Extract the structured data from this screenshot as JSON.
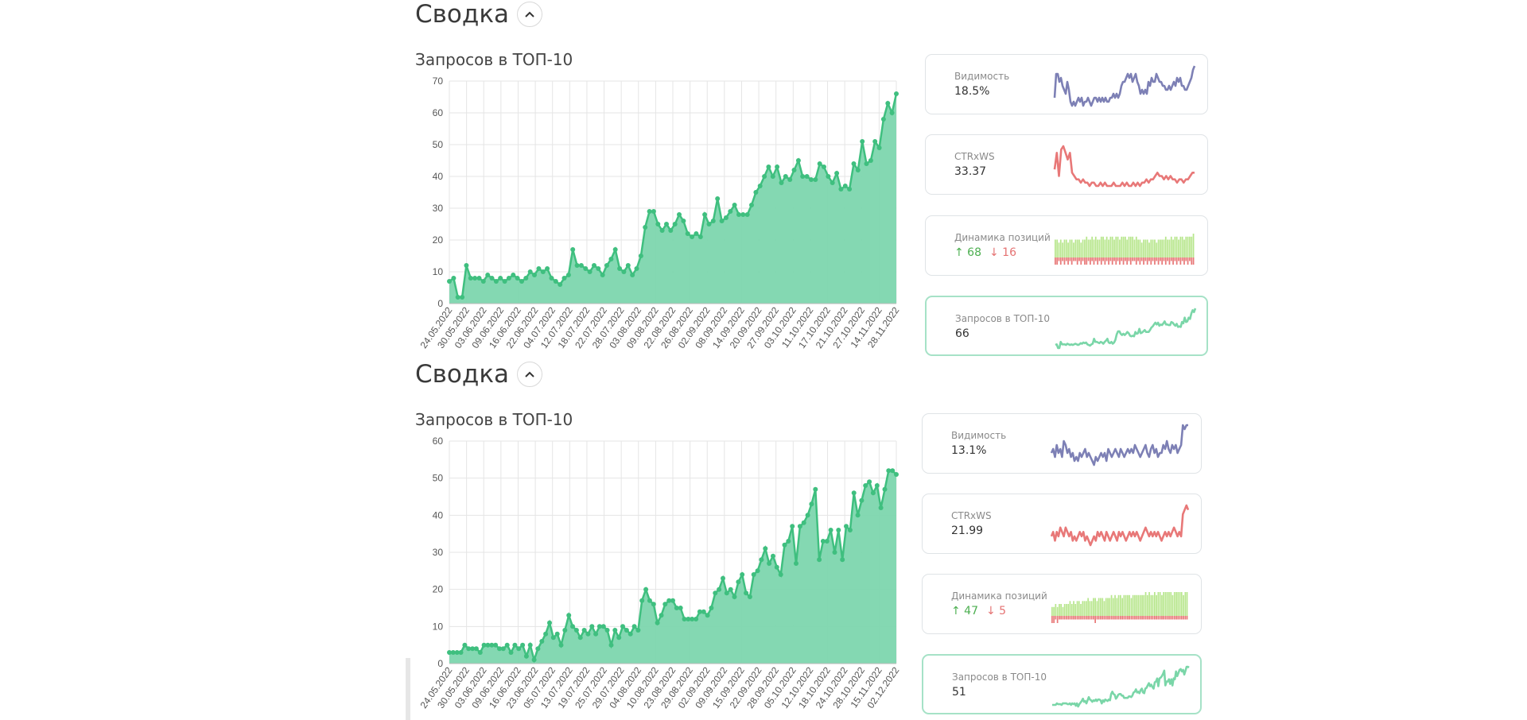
{
  "colors": {
    "area_fill": "#7dd6ae",
    "area_line": "#3fbf7f",
    "grid": "#e5e5e5",
    "visibility_line": "#7d80b5",
    "ctr_line": "#e87878",
    "pos_up": "#b7e68c",
    "pos_down": "#e87878",
    "top10_line": "#7ad6a8"
  },
  "sections": [
    {
      "title": "Сводка",
      "collapse_icon": "chevron-up-icon",
      "chart_data": {
        "type": "area",
        "title": "Запросов в ТОП-10",
        "xlabel": "",
        "ylabel": "",
        "ylim": [
          0,
          70
        ],
        "yticks": [
          0,
          10,
          20,
          30,
          40,
          50,
          60,
          70
        ],
        "x_tick_labels": [
          "24.05.2022",
          "30.05.2022",
          "03.06.2022",
          "09.06.2022",
          "16.06.2022",
          "22.06.2022",
          "04.07.2022",
          "12.07.2022",
          "18.07.2022",
          "22.07.2022",
          "28.07.2022",
          "03.08.2022",
          "09.08.2022",
          "22.08.2022",
          "26.08.2022",
          "02.09.2022",
          "08.09.2022",
          "14.09.2022",
          "20.09.2022",
          "27.09.2022",
          "03.10.2022",
          "11.10.2022",
          "17.10.2022",
          "21.10.2022",
          "27.10.2022",
          "14.11.2022",
          "28.11.2022"
        ],
        "values": [
          7,
          8,
          2,
          2,
          12,
          8,
          8,
          8,
          7,
          9,
          8,
          7,
          8,
          7,
          8,
          9,
          8,
          7,
          8,
          10,
          9,
          11,
          10,
          11,
          8,
          7,
          6,
          8,
          9,
          17,
          12,
          12,
          11,
          10,
          12,
          11,
          9,
          12,
          14,
          17,
          11,
          10,
          12,
          9,
          11,
          15,
          24,
          29,
          29,
          25,
          23,
          25,
          23,
          25,
          28,
          26,
          22,
          21,
          22,
          21,
          28,
          25,
          26,
          33,
          26,
          27,
          29,
          31,
          28,
          28,
          28,
          31,
          35,
          37,
          40,
          43,
          40,
          43,
          38,
          40,
          39,
          42,
          45,
          40,
          40,
          39,
          39,
          44,
          43,
          40,
          38,
          41,
          36,
          37,
          36,
          44,
          42,
          51,
          44,
          45,
          51,
          49,
          58,
          63,
          60,
          66
        ]
      },
      "cards": [
        {
          "label": "Видимость",
          "value": "18.5%",
          "kind": "line",
          "color_key": "visibility_line",
          "values": [
            3,
            9,
            9,
            7,
            8,
            6,
            5,
            4,
            7,
            5,
            2,
            1,
            2,
            1,
            2,
            3,
            2,
            3,
            1,
            2,
            2,
            3,
            2,
            1,
            2,
            3,
            3,
            2,
            3,
            2,
            3,
            2,
            3,
            2,
            2,
            3,
            3,
            4,
            3,
            4,
            3,
            4,
            6,
            7,
            7,
            8,
            9,
            8,
            9,
            7,
            8,
            9,
            7,
            6,
            4,
            5,
            4,
            5,
            4,
            7,
            6,
            8,
            7,
            7,
            9,
            8,
            7,
            7,
            6,
            6,
            5,
            5,
            6,
            5,
            6,
            7,
            6,
            8,
            7,
            8,
            6,
            6,
            5,
            5,
            6,
            7,
            8,
            10,
            11
          ]
        },
        {
          "label": "CTRxWS",
          "value": "33.37",
          "kind": "line",
          "color_key": "ctr_line",
          "values": [
            5,
            10,
            3,
            11,
            12,
            10,
            8,
            10,
            4,
            3,
            2,
            2,
            1,
            2,
            1,
            1,
            0,
            1,
            1,
            0,
            0,
            1,
            0,
            1,
            0,
            0,
            0,
            1,
            0,
            0,
            0,
            1,
            0,
            1,
            0,
            0,
            1,
            0,
            1,
            0,
            1,
            1,
            2,
            1,
            2,
            2,
            3,
            4,
            3,
            3,
            2,
            3,
            2,
            3,
            2,
            2,
            1,
            2,
            2,
            1,
            2,
            2,
            3,
            4,
            4
          ]
        },
        {
          "label": "Динамика позиций",
          "value_up": "↑ 68",
          "value_down": "↓ 16",
          "kind": "bars",
          "up": [
            6,
            6,
            5,
            6,
            5,
            6,
            6,
            5,
            6,
            6,
            5,
            6,
            6,
            6,
            5,
            6,
            6,
            7,
            6,
            6,
            7,
            6,
            7,
            6,
            6,
            7,
            7,
            6,
            7,
            6,
            7,
            7,
            6,
            7,
            7,
            6,
            7,
            7,
            7,
            6,
            7,
            7,
            7,
            6,
            7,
            6,
            6,
            5,
            6,
            6,
            6,
            5,
            6,
            6,
            6,
            5,
            6,
            6,
            6,
            6,
            7,
            6,
            6,
            7,
            6,
            7,
            7,
            6,
            7,
            7,
            6,
            7,
            7,
            7,
            7,
            8
          ],
          "down": [
            2,
            2,
            1,
            2,
            1,
            2,
            1,
            2,
            1,
            2,
            1,
            1,
            2,
            1,
            2,
            1,
            2,
            2,
            1,
            2,
            1,
            2,
            1,
            2,
            1,
            2,
            1,
            2,
            1,
            2,
            1,
            2,
            1,
            2,
            1,
            2,
            1,
            2,
            1,
            2,
            1,
            2,
            1,
            1,
            2,
            1,
            2,
            1,
            2,
            1,
            2,
            1,
            2,
            1,
            2,
            1,
            2,
            1,
            2,
            1,
            2,
            1,
            2,
            1,
            2,
            1,
            2,
            1,
            2,
            1,
            2,
            1,
            2,
            1,
            2,
            2
          ]
        },
        {
          "label": "Запросов в ТОП-10",
          "value": "66",
          "kind": "line",
          "color_key": "top10_line",
          "active": true,
          "values": [
            7,
            8,
            2,
            2,
            12,
            8,
            8,
            8,
            7,
            9,
            8,
            7,
            8,
            7,
            8,
            9,
            8,
            7,
            8,
            10,
            9,
            11,
            10,
            11,
            8,
            7,
            6,
            8,
            9,
            17,
            12,
            12,
            11,
            10,
            12,
            11,
            9,
            12,
            14,
            17,
            11,
            10,
            12,
            9,
            11,
            15,
            24,
            29,
            29,
            25,
            23,
            25,
            23,
            25,
            28,
            26,
            22,
            21,
            22,
            21,
            28,
            25,
            26,
            33,
            26,
            27,
            29,
            31,
            28,
            28,
            28,
            31,
            35,
            37,
            40,
            43,
            40,
            43,
            38,
            40,
            39,
            42,
            45,
            40,
            40,
            39,
            39,
            44,
            43,
            40,
            38,
            41,
            36,
            37,
            36,
            44,
            42,
            51,
            44,
            45,
            51,
            49,
            58,
            63,
            60,
            66
          ]
        }
      ]
    },
    {
      "title": "Сводка",
      "collapse_icon": "chevron-up-icon",
      "chart_data": {
        "type": "area",
        "title": "Запросов в ТОП-10",
        "xlabel": "",
        "ylabel": "",
        "ylim": [
          0,
          60
        ],
        "yticks": [
          0,
          10,
          20,
          30,
          40,
          50,
          60
        ],
        "x_tick_labels": [
          "24.05.2022",
          "30.05.2022",
          "03.06.2022",
          "09.06.2022",
          "16.06.2022",
          "23.06.2022",
          "05.07.2022",
          "13.07.2022",
          "19.07.2022",
          "25.07.2022",
          "29.07.2022",
          "04.08.2022",
          "10.08.2022",
          "23.08.2022",
          "29.08.2022",
          "02.09.2022",
          "09.09.2022",
          "15.09.2022",
          "22.09.2022",
          "28.09.2022",
          "05.10.2022",
          "12.10.2022",
          "18.10.2022",
          "24.10.2022",
          "28.10.2022",
          "15.11.2022",
          "02.12.2022"
        ],
        "values": [
          3,
          3,
          3,
          3,
          5,
          4,
          4,
          4,
          3,
          5,
          5,
          5,
          5,
          4,
          4,
          5,
          3,
          5,
          4,
          5,
          2,
          5,
          1,
          4,
          6,
          8,
          11,
          7,
          8,
          5,
          9,
          13,
          10,
          9,
          7,
          9,
          8,
          10,
          8,
          10,
          10,
          9,
          5,
          9,
          7,
          10,
          9,
          8,
          10,
          9,
          17,
          20,
          17,
          16,
          11,
          13,
          16,
          17,
          17,
          15,
          15,
          12,
          12,
          12,
          12,
          14,
          14,
          13,
          15,
          19,
          20,
          23,
          19,
          20,
          18,
          22,
          24,
          19,
          18,
          24,
          25,
          28,
          31,
          27,
          29,
          26,
          24,
          32,
          33,
          37,
          27,
          37,
          38,
          40,
          43,
          47,
          28,
          33,
          33,
          36,
          30,
          36,
          28,
          37,
          36,
          46,
          40,
          44,
          48,
          49,
          46,
          48,
          42,
          47,
          52,
          52,
          51
        ]
      },
      "cards": [
        {
          "label": "Видимость",
          "value": "13.1%",
          "kind": "line",
          "color_key": "visibility_line",
          "values": [
            4,
            5,
            3,
            6,
            4,
            5,
            3,
            7,
            6,
            4,
            5,
            3,
            4,
            2,
            3,
            2,
            4,
            3,
            4,
            5,
            3,
            4,
            3,
            2,
            1,
            3,
            2,
            3,
            4,
            3,
            4,
            2,
            5,
            4,
            3,
            4,
            5,
            4,
            3,
            5,
            4,
            3,
            4,
            5,
            4,
            5,
            4,
            6,
            5,
            4,
            3,
            4,
            5,
            6,
            4,
            3,
            5,
            6,
            4,
            5,
            3,
            4,
            4,
            6,
            5,
            7,
            5,
            4,
            6,
            5,
            6,
            4,
            5,
            6,
            11,
            10,
            11,
            11
          ]
        },
        {
          "label": "CTRxWS",
          "value": "21.99",
          "kind": "line",
          "color_key": "ctr_line",
          "values": [
            4,
            5,
            3,
            5,
            4,
            6,
            5,
            4,
            6,
            5,
            4,
            5,
            3,
            4,
            3,
            4,
            5,
            4,
            5,
            3,
            4,
            3,
            2,
            3,
            4,
            3,
            5,
            4,
            5,
            4,
            3,
            5,
            4,
            3,
            4,
            5,
            4,
            3,
            5,
            4,
            5,
            4,
            3,
            4,
            5,
            4,
            5,
            4,
            5,
            4,
            3,
            4,
            5,
            6,
            5,
            4,
            5,
            4,
            5,
            4,
            5,
            4,
            3,
            4,
            5,
            4,
            5,
            4,
            5,
            6,
            5,
            4,
            5,
            4,
            9,
            10,
            11,
            10
          ]
        },
        {
          "label": "Динамика позиций",
          "value_up": "↑ 47",
          "value_down": "↓ 5",
          "kind": "bars",
          "up": [
            3,
            3,
            4,
            3,
            4,
            4,
            3,
            4,
            4,
            4,
            5,
            4,
            5,
            4,
            5,
            5,
            4,
            5,
            5,
            5,
            6,
            5,
            5,
            6,
            6,
            5,
            6,
            6,
            6,
            5,
            6,
            6,
            6,
            7,
            6,
            7,
            6,
            7,
            7,
            6,
            7,
            7,
            7,
            7,
            6,
            7,
            7,
            7,
            7,
            7,
            7,
            7,
            8,
            7,
            8,
            7,
            7,
            8,
            7,
            8,
            8,
            7,
            8,
            8,
            8,
            8,
            8,
            7,
            8,
            8,
            8,
            8,
            8,
            7,
            8,
            8
          ],
          "down": [
            2,
            2,
            1,
            2,
            1,
            1,
            1,
            1,
            1,
            1,
            1,
            1,
            1,
            1,
            1,
            1,
            1,
            1,
            1,
            1,
            1,
            1,
            1,
            1,
            2,
            1,
            1,
            1,
            1,
            1,
            1,
            1,
            1,
            1,
            1,
            1,
            1,
            1,
            1,
            1,
            1,
            1,
            1,
            1,
            1,
            1,
            1,
            1,
            1,
            1,
            1,
            1,
            1,
            1,
            1,
            1,
            1,
            1,
            1,
            1,
            1,
            1,
            1,
            1,
            1,
            1,
            1,
            1,
            1,
            1,
            1,
            1,
            1,
            1,
            1,
            1
          ]
        },
        {
          "label": "Запросов в ТОП-10",
          "value": "51",
          "kind": "line",
          "color_key": "top10_line",
          "active": true,
          "values": [
            3,
            3,
            3,
            3,
            5,
            4,
            4,
            4,
            3,
            5,
            5,
            5,
            5,
            4,
            4,
            5,
            3,
            5,
            4,
            5,
            2,
            5,
            1,
            4,
            6,
            8,
            11,
            7,
            8,
            5,
            9,
            13,
            10,
            9,
            7,
            9,
            8,
            10,
            8,
            10,
            10,
            9,
            5,
            9,
            7,
            10,
            9,
            8,
            10,
            9,
            17,
            20,
            17,
            16,
            11,
            13,
            16,
            17,
            17,
            15,
            15,
            12,
            12,
            12,
            12,
            14,
            14,
            13,
            15,
            19,
            20,
            23,
            19,
            20,
            18,
            22,
            24,
            19,
            18,
            24,
            25,
            28,
            31,
            27,
            29,
            26,
            24,
            32,
            33,
            37,
            27,
            37,
            38,
            40,
            43,
            47,
            28,
            33,
            33,
            36,
            30,
            36,
            28,
            37,
            36,
            46,
            40,
            44,
            48,
            49,
            46,
            48,
            42,
            47,
            52,
            52,
            51
          ]
        }
      ]
    }
  ]
}
